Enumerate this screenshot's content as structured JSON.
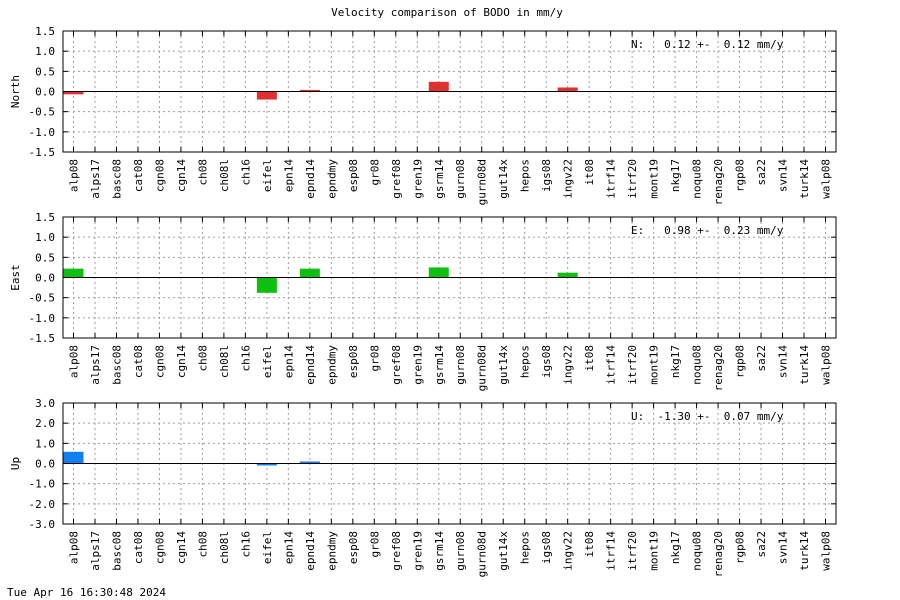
{
  "title": "Velocity comparison of BODO in mm/y",
  "footer": "Tue Apr 16 16:30:48 2024",
  "chart_data": [
    {
      "type": "bar",
      "ylabel": "North",
      "ylim": [
        -1.5,
        1.5
      ],
      "yticks": [
        "1.5",
        "1.0",
        "0.5",
        "0.0",
        "-0.5",
        "-1.0",
        "-1.5"
      ],
      "annotation": "N:   0.12 +-  0.12 mm/y",
      "color": "#e03030",
      "categories": [
        "alp08",
        "alps17",
        "basc08",
        "cat08",
        "cgn08",
        "cgn14",
        "ch08",
        "ch08l",
        "ch16",
        "eifel",
        "epn14",
        "epnd14",
        "epndmy",
        "esp08",
        "gr08",
        "gref08",
        "gren19",
        "gsrm14",
        "gurn08",
        "gurn08d",
        "gut14x",
        "hepos",
        "igs08",
        "ingv22",
        "it08",
        "itrf14",
        "itrf20",
        "mont19",
        "nkg17",
        "noqu08",
        "renag20",
        "rgp08",
        "sa22",
        "svn14",
        "turk14",
        "walp08"
      ],
      "values": [
        -0.07,
        0,
        0,
        0,
        0,
        0,
        0,
        0,
        0,
        -0.2,
        0,
        0.04,
        0,
        0,
        0,
        0,
        0,
        0.24,
        0,
        0,
        0,
        0,
        0,
        0.1,
        0,
        0,
        0,
        0,
        0,
        0,
        0,
        0,
        0,
        0,
        0,
        0
      ],
      "grid": true
    },
    {
      "type": "bar",
      "ylabel": "East",
      "ylim": [
        -1.5,
        1.5
      ],
      "yticks": [
        "1.5",
        "1.0",
        "0.5",
        "0.0",
        "-0.5",
        "-1.0",
        "-1.5"
      ],
      "annotation": "E:   0.98 +-  0.23 mm/y",
      "color": "#10c010",
      "categories": [
        "alp08",
        "alps17",
        "basc08",
        "cat08",
        "cgn08",
        "cgn14",
        "ch08",
        "ch08l",
        "ch16",
        "eifel",
        "epn14",
        "epnd14",
        "epndmy",
        "esp08",
        "gr08",
        "gref08",
        "gren19",
        "gsrm14",
        "gurn08",
        "gurn08d",
        "gut14x",
        "hepos",
        "igs08",
        "ingv22",
        "it08",
        "itrf14",
        "itrf20",
        "mont19",
        "nkg17",
        "noqu08",
        "renag20",
        "rgp08",
        "sa22",
        "svn14",
        "turk14",
        "walp08"
      ],
      "values": [
        0.22,
        0,
        0,
        0,
        0,
        0,
        0,
        0,
        0,
        -0.38,
        0,
        0.22,
        0,
        0,
        0,
        0,
        0,
        0.25,
        0,
        0,
        0,
        0,
        0,
        0.12,
        0,
        0,
        0,
        0,
        0,
        0,
        0,
        0,
        0,
        0,
        0,
        0
      ],
      "grid": true
    },
    {
      "type": "bar",
      "ylabel": "Up",
      "ylim": [
        -3.0,
        3.0
      ],
      "yticks": [
        "3.0",
        "2.0",
        "1.0",
        "0.0",
        "-1.0",
        "-2.0",
        "-3.0"
      ],
      "annotation": "U:  -1.30 +-  0.07 mm/y",
      "color": "#1080f0",
      "categories": [
        "alp08",
        "alps17",
        "basc08",
        "cat08",
        "cgn08",
        "cgn14",
        "ch08",
        "ch08l",
        "ch16",
        "eifel",
        "epn14",
        "epnd14",
        "epndmy",
        "esp08",
        "gr08",
        "gref08",
        "gren19",
        "gsrm14",
        "gurn08",
        "gurn08d",
        "gut14x",
        "hepos",
        "igs08",
        "ingv22",
        "it08",
        "itrf14",
        "itrf20",
        "mont19",
        "nkg17",
        "noqu08",
        "renag20",
        "rgp08",
        "sa22",
        "svn14",
        "turk14",
        "walp08"
      ],
      "values": [
        0.58,
        0,
        0,
        0,
        0,
        0,
        0,
        0,
        0,
        -0.08,
        0,
        0.1,
        0,
        0,
        0,
        0,
        0,
        0,
        0,
        0,
        0,
        0,
        0,
        0,
        0,
        0,
        0,
        0,
        0,
        0,
        0,
        0,
        0,
        0,
        0,
        0
      ],
      "grid": true
    }
  ]
}
